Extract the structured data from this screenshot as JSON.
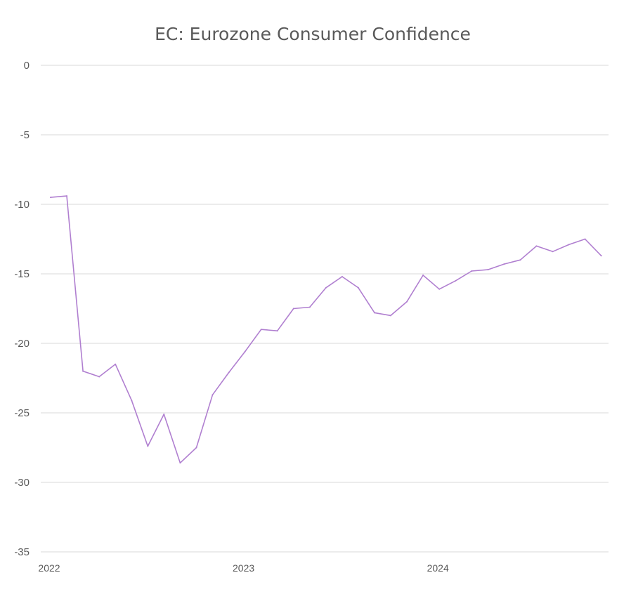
{
  "chart_data": {
    "type": "line",
    "title": "EC: Eurozone Consumer Confidence",
    "xlabel": "",
    "ylabel": "",
    "ylim": [
      -35,
      0
    ],
    "yticks": [
      0,
      -5,
      -10,
      -15,
      -20,
      -25,
      -30,
      -35
    ],
    "xtick_labels": [
      "2022",
      "2023",
      "2024"
    ],
    "grid": true,
    "legend": "none",
    "line_color": "#b07fd0",
    "x": [
      "2022-01",
      "2022-02",
      "2022-03",
      "2022-04",
      "2022-05",
      "2022-06",
      "2022-07",
      "2022-08",
      "2022-09",
      "2022-10",
      "2022-11",
      "2022-12",
      "2023-01",
      "2023-02",
      "2023-03",
      "2023-04",
      "2023-05",
      "2023-06",
      "2023-07",
      "2023-08",
      "2023-09",
      "2023-10",
      "2023-11",
      "2023-12",
      "2024-01",
      "2024-02",
      "2024-03",
      "2024-04",
      "2024-05",
      "2024-06",
      "2024-07",
      "2024-08",
      "2024-09",
      "2024-10",
      "2024-11"
    ],
    "series": [
      {
        "values": [
          -9.5,
          -9.4,
          -22.0,
          -22.4,
          -21.5,
          -24.1,
          -27.4,
          -25.1,
          -28.6,
          -27.5,
          -23.7,
          -22.1,
          -20.6,
          -19.0,
          -19.1,
          -17.5,
          -17.4,
          -16.0,
          -15.2,
          -16.0,
          -17.8,
          -18.0,
          -17.0,
          -15.1,
          -16.1,
          -15.5,
          -14.8,
          -14.7,
          -14.3,
          -14.0,
          -13.0,
          -13.4,
          -12.9,
          -12.5,
          -13.7
        ]
      }
    ]
  }
}
